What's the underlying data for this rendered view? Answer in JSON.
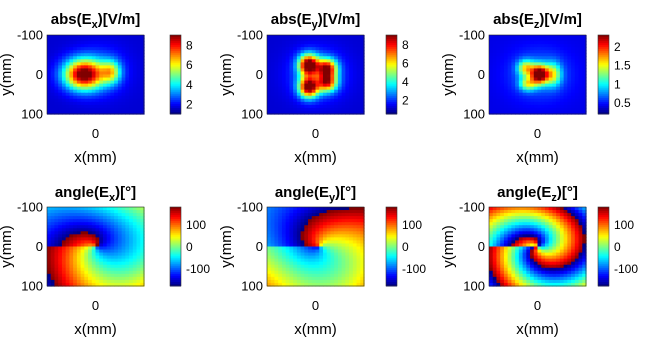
{
  "chart_data": [
    {
      "type": "heatmap",
      "title_parts": [
        "abs(E",
        "x",
        ")[V/m]"
      ],
      "xlabel": "x(mm)",
      "ylabel": "y(mm)",
      "xticks": [
        "0"
      ],
      "yticks": [
        "-100",
        "0",
        "100"
      ],
      "colorbar": {
        "ticks": [
          "2",
          "4",
          "6",
          "8"
        ],
        "tick_values": [
          2,
          4,
          6,
          8
        ],
        "range": [
          1,
          9
        ]
      },
      "colormap": "jet",
      "field": {
        "kind": "abs",
        "background": 0.08,
        "blobs": [
          {
            "cx": 0.38,
            "cy": 0.5,
            "sx": 0.14,
            "sy": 0.13,
            "a": 0.92
          },
          {
            "cx": 0.66,
            "cy": 0.47,
            "sx": 0.07,
            "sy": 0.1,
            "a": 0.42
          },
          {
            "cx": 0.55,
            "cy": 0.45,
            "sx": 0.2,
            "sy": 0.22,
            "a": 0.12
          }
        ]
      }
    },
    {
      "type": "heatmap",
      "title_parts": [
        "abs(E",
        "y",
        ")[V/m]"
      ],
      "xlabel": "x(mm)",
      "ylabel": "y(mm)",
      "xticks": [
        "0"
      ],
      "yticks": [
        "-100",
        "0",
        "100"
      ],
      "colorbar": {
        "ticks": [
          "2",
          "4",
          "6",
          "8"
        ],
        "tick_values": [
          2,
          4,
          6,
          8
        ],
        "range": [
          0.5,
          9
        ]
      },
      "colormap": "jet",
      "field": {
        "kind": "abs",
        "background": 0.08,
        "blobs": [
          {
            "cx": 0.43,
            "cy": 0.38,
            "sx": 0.07,
            "sy": 0.09,
            "a": 0.95
          },
          {
            "cx": 0.43,
            "cy": 0.66,
            "sx": 0.07,
            "sy": 0.09,
            "a": 0.9
          },
          {
            "cx": 0.62,
            "cy": 0.42,
            "sx": 0.07,
            "sy": 0.08,
            "a": 0.75
          },
          {
            "cx": 0.62,
            "cy": 0.6,
            "sx": 0.07,
            "sy": 0.08,
            "a": 0.7
          },
          {
            "cx": 0.52,
            "cy": 0.5,
            "sx": 0.2,
            "sy": 0.22,
            "a": 0.18
          }
        ]
      }
    },
    {
      "type": "heatmap",
      "title_parts": [
        "abs(E",
        "z",
        ")[V/m]"
      ],
      "xlabel": "x(mm)",
      "ylabel": "y(mm)",
      "xticks": [
        "0"
      ],
      "yticks": [
        "-100",
        "0",
        "100"
      ],
      "colorbar": {
        "ticks": [
          "0.5",
          "1",
          "1.5",
          "2"
        ],
        "tick_values": [
          0.5,
          1,
          1.5,
          2
        ],
        "range": [
          0.2,
          2.3
        ]
      },
      "colormap": "jet",
      "field": {
        "kind": "abs",
        "background": 0.1,
        "blobs": [
          {
            "cx": 0.52,
            "cy": 0.5,
            "sx": 0.06,
            "sy": 0.08,
            "a": 0.95
          },
          {
            "cx": 0.38,
            "cy": 0.42,
            "sx": 0.06,
            "sy": 0.07,
            "a": 0.45
          },
          {
            "cx": 0.4,
            "cy": 0.62,
            "sx": 0.06,
            "sy": 0.06,
            "a": 0.4
          },
          {
            "cx": 0.66,
            "cy": 0.5,
            "sx": 0.06,
            "sy": 0.1,
            "a": 0.4
          },
          {
            "cx": 0.52,
            "cy": 0.5,
            "sx": 0.22,
            "sy": 0.22,
            "a": 0.15
          }
        ]
      }
    },
    {
      "type": "heatmap",
      "title_parts": [
        "angle(E",
        "x",
        ")[°]"
      ],
      "xlabel": "x(mm)",
      "ylabel": "y(mm)",
      "xticks": [
        "0"
      ],
      "yticks": [
        "-100",
        "0",
        "100"
      ],
      "colorbar": {
        "ticks": [
          "100",
          "0",
          "-100"
        ],
        "tick_values": [
          100,
          0,
          -100
        ],
        "range": [
          -180,
          180
        ]
      },
      "colormap": "jet",
      "field": {
        "kind": "phase",
        "k": 5.5,
        "twist": 0.9,
        "offset": 0.2,
        "cx": 0.5,
        "cy": 0.5
      }
    },
    {
      "type": "heatmap",
      "title_parts": [
        "angle(E",
        "y",
        ")[°]"
      ],
      "xlabel": "x(mm)",
      "ylabel": "y(mm)",
      "xticks": [
        "0"
      ],
      "yticks": [
        "-100",
        "0",
        "100"
      ],
      "colorbar": {
        "ticks": [
          "100",
          "0",
          "-100"
        ],
        "tick_values": [
          100,
          0,
          -100
        ],
        "range": [
          -180,
          180
        ]
      },
      "colormap": "jet",
      "field": {
        "kind": "phase",
        "k": 4.5,
        "twist": -0.8,
        "offset": 2.6,
        "cx": 0.55,
        "cy": 0.5
      }
    },
    {
      "type": "heatmap",
      "title_parts": [
        "angle(E",
        "z",
        ")[°]"
      ],
      "xlabel": "x(mm)",
      "ylabel": "y(mm)",
      "xticks": [
        "0"
      ],
      "yticks": [
        "-100",
        "0",
        "100"
      ],
      "colorbar": {
        "ticks": [
          "100",
          "0",
          "-100"
        ],
        "tick_values": [
          100,
          0,
          -100
        ],
        "range": [
          -180,
          180
        ]
      },
      "colormap": "jet",
      "field": {
        "kind": "phase",
        "k": 12,
        "twist": 1.6,
        "offset": 1.0,
        "cx": 0.5,
        "cy": 0.5
      }
    }
  ]
}
